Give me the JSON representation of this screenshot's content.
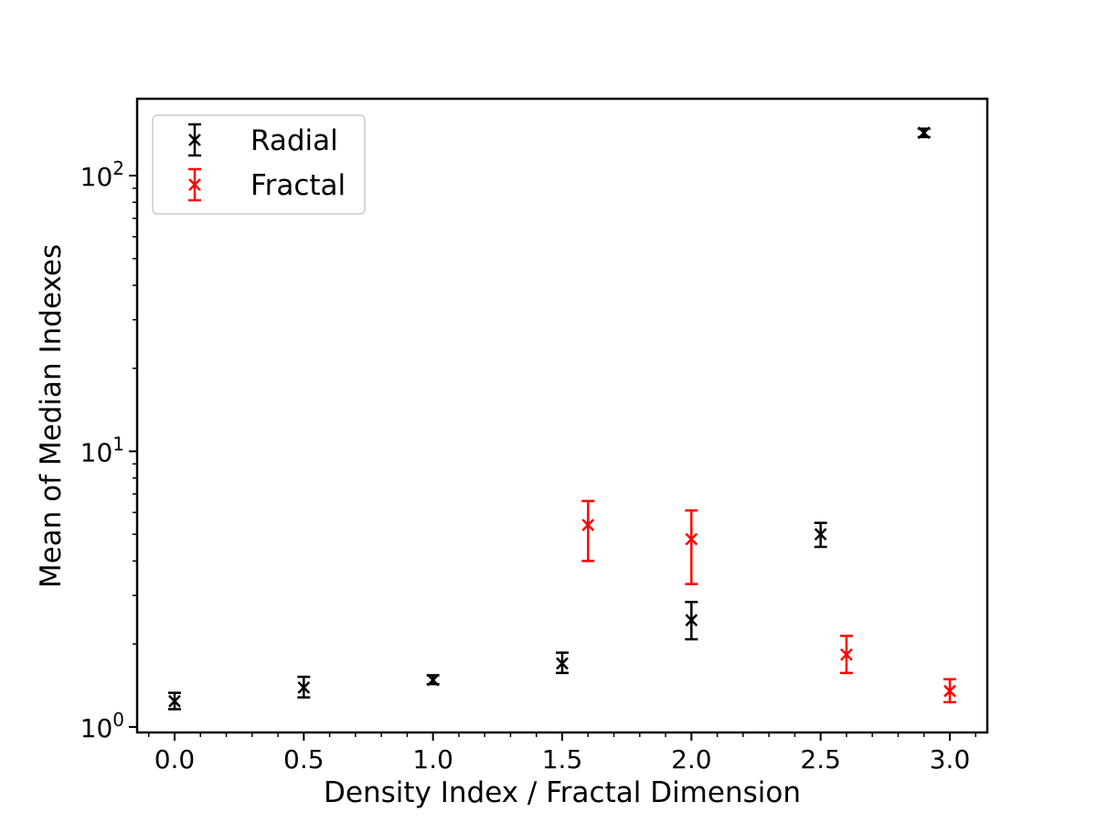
{
  "chart_data": {
    "type": "scatter",
    "title": "",
    "xlabel": "Density Index / Fractal Dimension",
    "ylabel": "Mean of Median Indexes",
    "yscale": "log",
    "xlim": [
      -0.145,
      3.145
    ],
    "ylim": [
      0.955,
      190
    ],
    "x_ticks": [
      {
        "value": 0.0,
        "label": "0.0"
      },
      {
        "value": 0.5,
        "label": "0.5"
      },
      {
        "value": 1.0,
        "label": "1.0"
      },
      {
        "value": 1.5,
        "label": "1.5"
      },
      {
        "value": 2.0,
        "label": "2.0"
      },
      {
        "value": 2.5,
        "label": "2.5"
      },
      {
        "value": 3.0,
        "label": "3.0"
      }
    ],
    "y_ticks": [
      {
        "value": 1,
        "base": "10",
        "exp": "0"
      },
      {
        "value": 10,
        "base": "10",
        "exp": "1"
      },
      {
        "value": 100,
        "base": "10",
        "exp": "2"
      }
    ],
    "grid": false,
    "legend_position": "upper-left",
    "marker": "x",
    "series": [
      {
        "name": "Radial",
        "color": "#000000",
        "points": [
          {
            "x": 0.0,
            "y": 1.24,
            "ylow": 1.16,
            "yhigh": 1.33
          },
          {
            "x": 0.5,
            "y": 1.39,
            "ylow": 1.28,
            "yhigh": 1.52
          },
          {
            "x": 1.0,
            "y": 1.48,
            "ylow": 1.43,
            "yhigh": 1.54
          },
          {
            "x": 1.5,
            "y": 1.7,
            "ylow": 1.57,
            "yhigh": 1.86
          },
          {
            "x": 2.0,
            "y": 2.44,
            "ylow": 2.08,
            "yhigh": 2.84
          },
          {
            "x": 2.5,
            "y": 5.0,
            "ylow": 4.5,
            "yhigh": 5.5
          },
          {
            "x": 2.9,
            "y": 143,
            "ylow": 138,
            "yhigh": 148
          }
        ]
      },
      {
        "name": "Fractal",
        "color": "#ff0000",
        "points": [
          {
            "x": 1.6,
            "y": 5.4,
            "ylow": 4.0,
            "yhigh": 6.6
          },
          {
            "x": 2.0,
            "y": 4.8,
            "ylow": 3.3,
            "yhigh": 6.1
          },
          {
            "x": 2.6,
            "y": 1.83,
            "ylow": 1.57,
            "yhigh": 2.14
          },
          {
            "x": 3.0,
            "y": 1.35,
            "ylow": 1.23,
            "yhigh": 1.49
          }
        ]
      }
    ]
  }
}
